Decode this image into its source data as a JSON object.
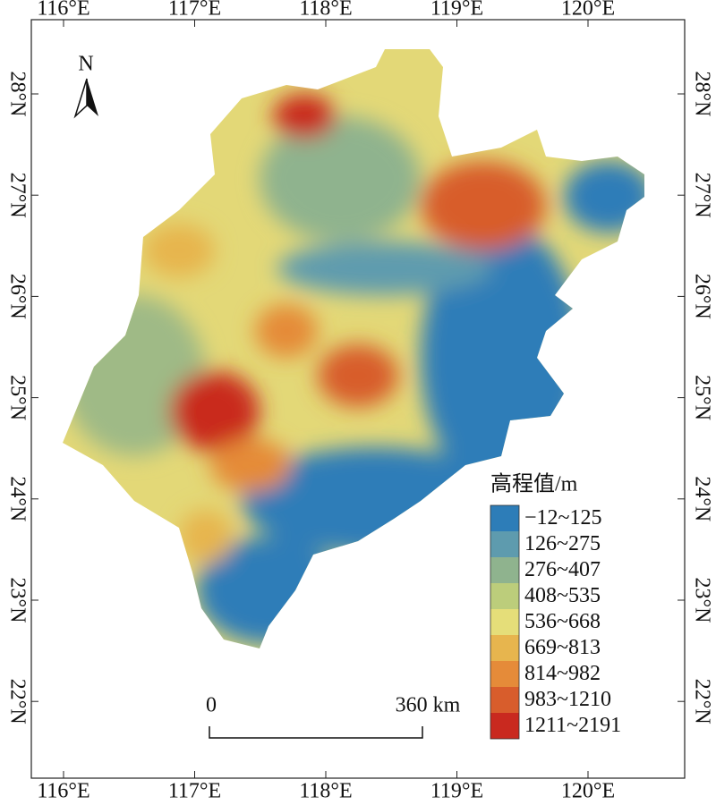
{
  "map": {
    "lon_labels": [
      "116°E",
      "117°E",
      "118°E",
      "119°E",
      "120°E"
    ],
    "lat_labels": [
      "28°N",
      "27°N",
      "26°N",
      "25°N",
      "24°N",
      "23°N",
      "22°N"
    ],
    "north": "N",
    "legend": {
      "title": "高程值/m",
      "items": [
        {
          "label": "−12~125",
          "color": "#2d7db8"
        },
        {
          "label": "126~275",
          "color": "#5e9bae"
        },
        {
          "label": "276~407",
          "color": "#8fb38e"
        },
        {
          "label": "408~535",
          "color": "#bccd7b"
        },
        {
          "label": "536~668",
          "color": "#e5de79"
        },
        {
          "label": "669~813",
          "color": "#e7b54e"
        },
        {
          "label": "814~982",
          "color": "#e58b39"
        },
        {
          "label": "983~1210",
          "color": "#d85d2c"
        },
        {
          "label": "1211~2191",
          "color": "#c9291f"
        }
      ]
    },
    "scale_bar": {
      "start": "0",
      "end": "360 km"
    }
  }
}
